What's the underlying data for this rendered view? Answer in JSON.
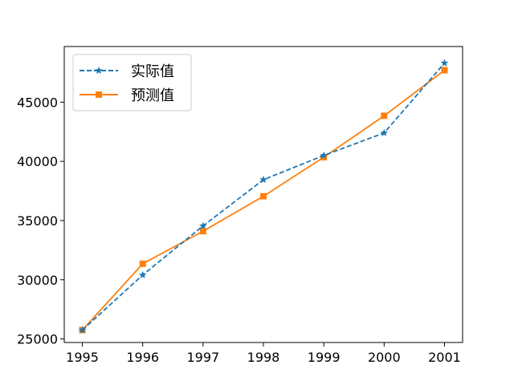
{
  "chart_data": {
    "type": "line",
    "title": "",
    "xlabel": "",
    "ylabel": "",
    "categories": [
      "1995",
      "1996",
      "1997",
      "1998",
      "1999",
      "2000",
      "2001"
    ],
    "x": [
      1995,
      1996,
      1997,
      1998,
      1999,
      2000,
      2001
    ],
    "xlim": [
      1994.7,
      2001.3
    ],
    "ylim": [
      24700,
      49700
    ],
    "yticks": [
      25000,
      30000,
      35000,
      40000,
      45000
    ],
    "grid": false,
    "legend_position": "top-left",
    "series": [
      {
        "name": "实际值",
        "values": [
          25750,
          30400,
          34550,
          38450,
          40500,
          42400,
          48300
        ],
        "color": "#1f77b4",
        "line_style": "dashed",
        "marker": "star"
      },
      {
        "name": "预测值",
        "values": [
          25750,
          31350,
          34100,
          37050,
          40350,
          43850,
          47700
        ],
        "color": "#ff7f0e",
        "line_style": "solid",
        "marker": "square"
      }
    ]
  }
}
